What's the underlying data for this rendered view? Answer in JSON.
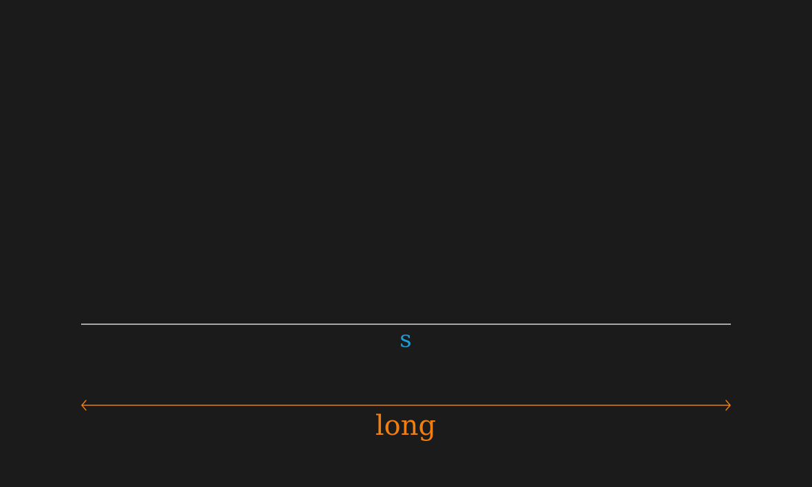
{
  "labels": {
    "s": "s",
    "long": "long"
  },
  "colors": {
    "background": "#1b1b1b",
    "line": "#ffffff",
    "s": "#1d9bd7",
    "long": "#f07e10"
  }
}
